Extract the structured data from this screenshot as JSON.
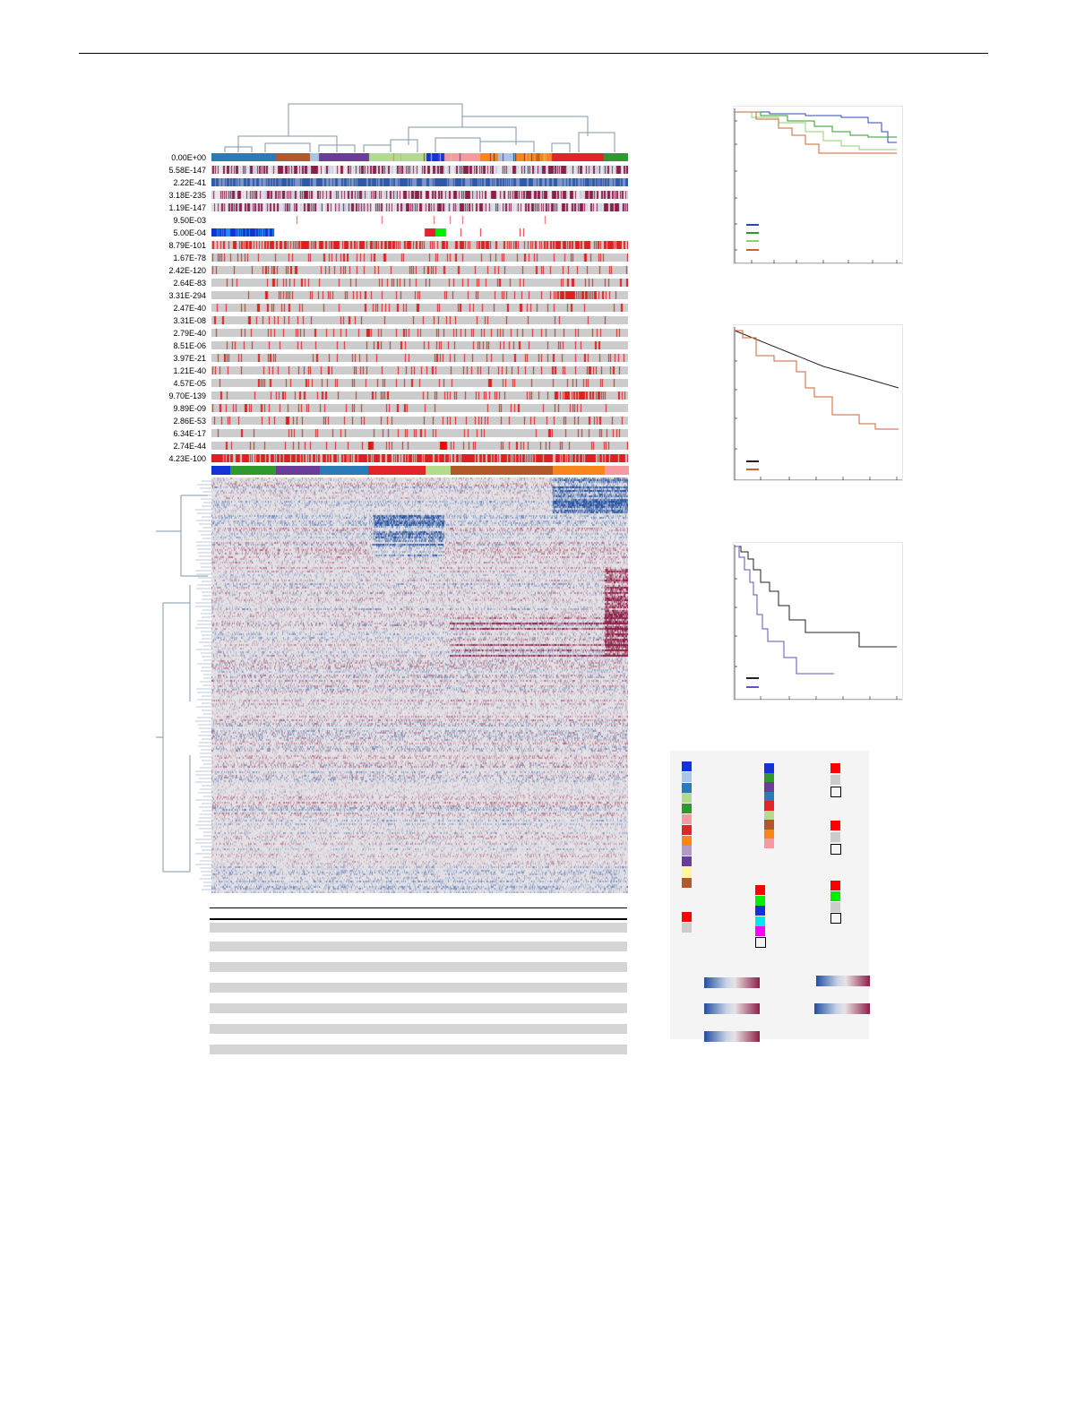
{
  "figure": {
    "track_pvalues": [
      "0.00E+00",
      "5.58E-147",
      "2.22E-41",
      "3.18E-235",
      "1.19E-147",
      "9.50E-03",
      "5.00E-04",
      "8.79E-101",
      "1.67E-78",
      "2.42E-120",
      "2.64E-83",
      "3.31E-294",
      "2.47E-40",
      "3.31E-08",
      "2.79E-40",
      "8.51E-06",
      "3.97E-21",
      "1.21E-40",
      "4.57E-05",
      "9.70E-139",
      "9.89E-09",
      "2.86E-53",
      "6.34E-17",
      "2.74E-44",
      "4.23E-100"
    ],
    "colors": {
      "blue": "#1432d6",
      "light_blue": "#a9c6e6",
      "steel_blue": "#2b7bb9",
      "light_green": "#b2dc8c",
      "green": "#2e9a2e",
      "pink": "#f49aa0",
      "red": "#e0242a",
      "orange": "#f7861c",
      "lavender": "#b29ac6",
      "purple": "#6a3d9a",
      "yellow": "#fef7a2",
      "brown": "#b15928",
      "grey": "#cccccc",
      "bright_red": "#ff0000",
      "bright_green": "#00ee00",
      "cyan": "#00e5f0",
      "magenta": "#ff00ff"
    }
  },
  "icons": {
    "dendrogram": "dendrogram-icon",
    "heatmap": "heatmap-icon"
  }
}
